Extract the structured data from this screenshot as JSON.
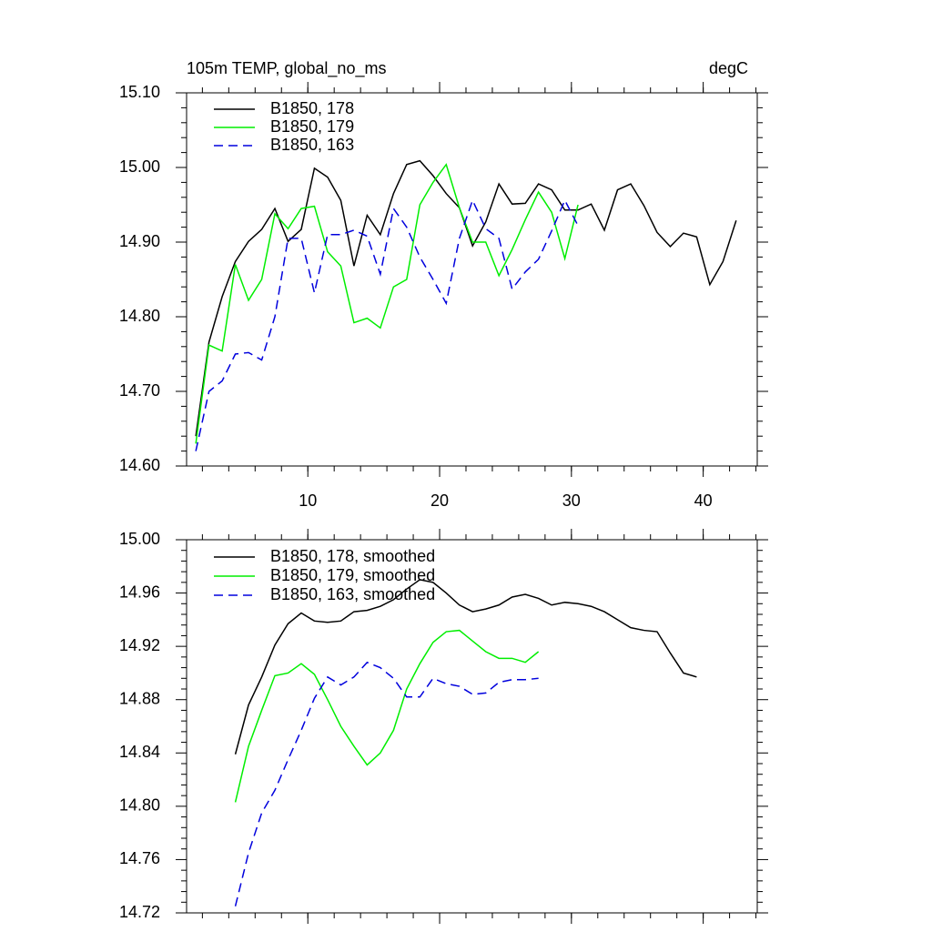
{
  "chart_data": [
    {
      "type": "line",
      "title": "105m TEMP, global_no_ms",
      "units": "degC",
      "xlim": [
        0.8,
        44.1
      ],
      "xticks": [
        10,
        20,
        30,
        40
      ],
      "show_xtick_labels": true,
      "ylim": [
        14.6,
        15.1
      ],
      "yticks": [
        {
          "value": 14.6,
          "label": "14.60"
        },
        {
          "value": 14.7,
          "label": "14.70"
        },
        {
          "value": 14.8,
          "label": "14.80"
        },
        {
          "value": 14.9,
          "label": "14.90"
        },
        {
          "value": 15.0,
          "label": "15.00"
        },
        {
          "value": 15.1,
          "label": "15.10"
        }
      ],
      "series": [
        {
          "name": "B1850, 178",
          "color": "#000000",
          "dash": false,
          "x": [
            1.5,
            2.5,
            3.5,
            4.5,
            5.5,
            6.5,
            7.5,
            8.5,
            9.5,
            10.5,
            11.5,
            12.5,
            13.5,
            14.5,
            15.5,
            16.5,
            17.5,
            18.5,
            19.5,
            20.5,
            21.5,
            22.5,
            23.5,
            24.5,
            25.5,
            26.5,
            27.5,
            28.5,
            29.5,
            30.5,
            31.5,
            32.5,
            33.5,
            34.5,
            35.5,
            36.5,
            37.5,
            38.5,
            39.5,
            40.5,
            41.5,
            42.5
          ],
          "values": [
            14.64,
            14.766,
            14.827,
            14.874,
            14.901,
            14.917,
            14.945,
            14.901,
            14.917,
            14.999,
            14.987,
            14.956,
            14.868,
            14.936,
            14.91,
            14.965,
            15.004,
            15.009,
            14.989,
            14.965,
            14.946,
            14.895,
            14.927,
            14.978,
            14.951,
            14.952,
            14.978,
            14.97,
            14.943,
            14.943,
            14.951,
            14.916,
            14.97,
            14.978,
            14.949,
            14.913,
            14.894,
            14.912,
            14.907,
            14.843,
            14.874,
            14.929
          ]
        },
        {
          "name": "B1850, 179",
          "color": "#00ee00",
          "dash": false,
          "x": [
            1.5,
            2.5,
            3.5,
            4.5,
            5.5,
            6.5,
            7.5,
            8.5,
            9.5,
            10.5,
            11.5,
            12.5,
            13.5,
            14.5,
            15.5,
            16.5,
            17.5,
            18.5,
            19.5,
            20.5,
            21.5,
            22.5,
            23.5,
            24.5,
            25.5,
            26.5,
            27.5,
            28.5,
            29.5,
            30.5
          ],
          "values": [
            14.63,
            14.762,
            14.754,
            14.87,
            14.822,
            14.85,
            14.938,
            14.918,
            14.945,
            14.948,
            14.887,
            14.868,
            14.792,
            14.798,
            14.785,
            14.84,
            14.85,
            14.95,
            14.98,
            15.004,
            14.946,
            14.9,
            14.9,
            14.855,
            14.89,
            14.93,
            14.967,
            14.94,
            14.878,
            14.95
          ]
        },
        {
          "name": "B1850, 163",
          "color": "#0000dd",
          "dash": true,
          "x": [
            1.5,
            2.5,
            3.5,
            4.5,
            5.5,
            6.5,
            7.5,
            8.5,
            9.5,
            10.5,
            11.5,
            12.5,
            13.5,
            14.5,
            15.5,
            16.5,
            17.5,
            18.5,
            19.5,
            20.5,
            21.5,
            22.5,
            23.5,
            24.5,
            25.5,
            26.5,
            27.5,
            28.5,
            29.5,
            30.5
          ],
          "values": [
            14.62,
            14.7,
            14.714,
            14.75,
            14.752,
            14.742,
            14.8,
            14.905,
            14.905,
            14.832,
            14.91,
            14.91,
            14.916,
            14.908,
            14.857,
            14.945,
            14.92,
            14.88,
            14.85,
            14.818,
            14.905,
            14.956,
            14.918,
            14.905,
            14.837,
            14.86,
            14.877,
            14.915,
            14.956,
            14.922
          ]
        }
      ]
    },
    {
      "type": "line",
      "xlim": [
        0.8,
        44.1
      ],
      "xticks": [
        10,
        20,
        30,
        40
      ],
      "show_xtick_labels": false,
      "ylim": [
        14.72,
        15.0
      ],
      "yticks": [
        {
          "value": 14.72,
          "label": "14.72"
        },
        {
          "value": 14.76,
          "label": "14.76"
        },
        {
          "value": 14.8,
          "label": "14.80"
        },
        {
          "value": 14.84,
          "label": "14.84"
        },
        {
          "value": 14.88,
          "label": "14.88"
        },
        {
          "value": 14.92,
          "label": "14.92"
        },
        {
          "value": 14.96,
          "label": "14.96"
        },
        {
          "value": 15.0,
          "label": "15.00"
        }
      ],
      "series": [
        {
          "name": "B1850, 178, smoothed",
          "color": "#000000",
          "dash": false,
          "x": [
            4.5,
            5.5,
            6.5,
            7.5,
            8.5,
            9.5,
            10.5,
            11.5,
            12.5,
            13.5,
            14.5,
            15.5,
            16.5,
            17.5,
            18.5,
            19.5,
            20.5,
            21.5,
            22.5,
            23.5,
            24.5,
            25.5,
            26.5,
            27.5,
            28.5,
            29.5,
            30.5,
            31.5,
            32.5,
            33.5,
            34.5,
            35.5,
            36.5,
            37.5,
            38.5,
            39.5
          ],
          "values": [
            14.839,
            14.876,
            14.897,
            14.921,
            14.937,
            14.945,
            14.939,
            14.938,
            14.939,
            14.946,
            14.947,
            14.95,
            14.955,
            14.963,
            14.97,
            14.968,
            14.96,
            14.951,
            14.946,
            14.948,
            14.951,
            14.957,
            14.959,
            14.956,
            14.951,
            14.953,
            14.952,
            14.95,
            14.946,
            14.94,
            14.934,
            14.932,
            14.931,
            14.915,
            14.9,
            14.897
          ]
        },
        {
          "name": "B1850, 179, smoothed",
          "color": "#00ee00",
          "dash": false,
          "x": [
            4.5,
            5.5,
            6.5,
            7.5,
            8.5,
            9.5,
            10.5,
            11.5,
            12.5,
            13.5,
            14.5,
            15.5,
            16.5,
            17.5,
            18.5,
            19.5,
            20.5,
            21.5,
            22.5,
            23.5,
            24.5,
            25.5,
            26.5,
            27.5
          ],
          "values": [
            14.803,
            14.845,
            14.872,
            14.898,
            14.9,
            14.907,
            14.899,
            14.88,
            14.86,
            14.845,
            14.831,
            14.84,
            14.857,
            14.888,
            14.907,
            14.923,
            14.931,
            14.932,
            14.924,
            14.916,
            14.911,
            14.911,
            14.908,
            14.916
          ]
        },
        {
          "name": "B1850, 163, smoothed",
          "color": "#0000dd",
          "dash": true,
          "x": [
            4.5,
            5.5,
            6.5,
            7.5,
            8.5,
            9.5,
            10.5,
            11.5,
            12.5,
            13.5,
            14.5,
            15.5,
            16.5,
            17.5,
            18.5,
            19.5,
            20.5,
            21.5,
            22.5,
            23.5,
            24.5,
            25.5,
            26.5,
            27.5
          ],
          "values": [
            14.725,
            14.765,
            14.795,
            14.812,
            14.835,
            14.857,
            14.881,
            14.897,
            14.891,
            14.897,
            14.908,
            14.904,
            14.896,
            14.882,
            14.882,
            14.896,
            14.892,
            14.89,
            14.884,
            14.885,
            14.893,
            14.895,
            14.895,
            14.896
          ]
        }
      ]
    }
  ]
}
